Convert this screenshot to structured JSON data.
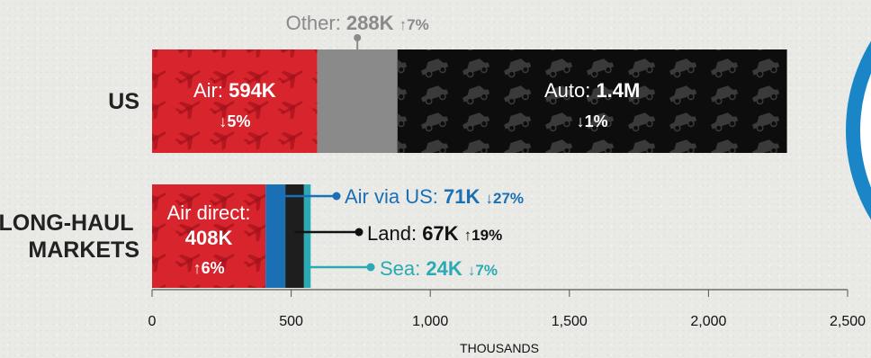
{
  "chart_data": {
    "type": "bar",
    "orientation": "horizontal",
    "stacked": true,
    "xlabel": "THOUSANDS",
    "xlim": [
      0,
      2500
    ],
    "xticks": [
      "0",
      "500",
      "1,000",
      "1,500",
      "2,000",
      "2,500"
    ],
    "categories": [
      "US",
      "LONG-HAUL MARKETS"
    ],
    "segments": {
      "us": [
        {
          "name": "Air",
          "value": 594,
          "value_label": "594K",
          "change": "↓5%",
          "color": "#d8242d"
        },
        {
          "name": "Other",
          "value": 288,
          "value_label": "288K",
          "change": "↑7%",
          "color": "#8a8a8a"
        },
        {
          "name": "Auto",
          "value": 1400,
          "value_label": "1.4M",
          "change": "↓1%",
          "color": "#0d0d0d"
        }
      ],
      "long_haul": [
        {
          "name": "Air direct",
          "value": 408,
          "value_label": "408K",
          "change": "↑6%",
          "color": "#d8242d"
        },
        {
          "name": "Air via US",
          "value": 71,
          "value_label": "71K",
          "change": "↓27%",
          "color": "#1a6fb5"
        },
        {
          "name": "Land",
          "value": 67,
          "value_label": "67K",
          "change": "↑19%",
          "color": "#1e1e1e"
        },
        {
          "name": "Sea",
          "value": 24,
          "value_label": "24K",
          "change": "↓7%",
          "color": "#2aaab4"
        }
      ]
    }
  },
  "colors": {
    "background": "#e9e9e6",
    "circle_ring": "#1a86c8"
  }
}
